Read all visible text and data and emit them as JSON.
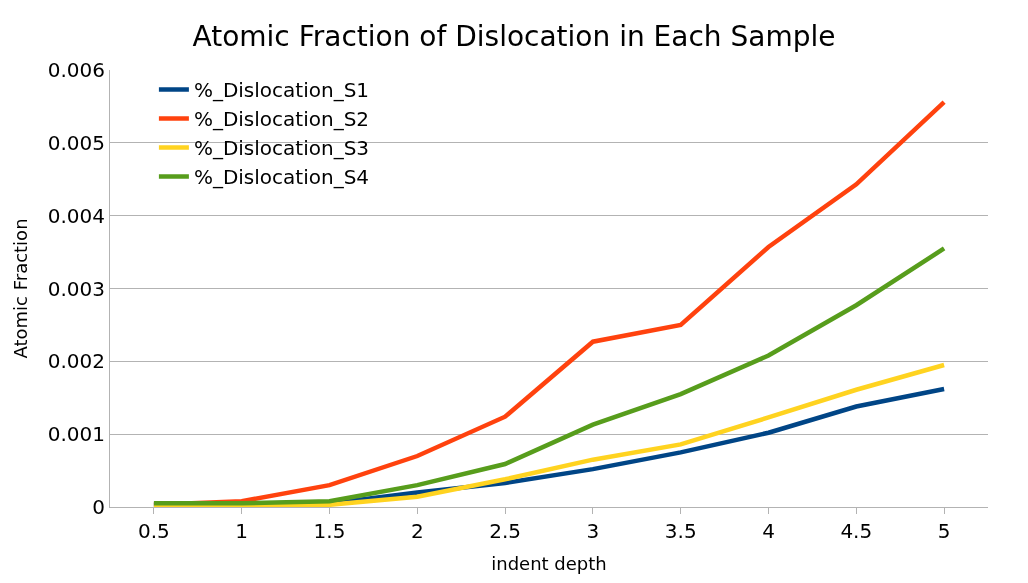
{
  "chart_data": {
    "type": "line",
    "title": "Atomic Fraction of Dislocation in Each Sample",
    "xlabel": "indent depth",
    "ylabel": "Atomic Fraction",
    "categories": [
      "0.5",
      "1",
      "1.5",
      "2",
      "2.5",
      "3",
      "3.5",
      "4",
      "4.5",
      "5"
    ],
    "series": [
      {
        "name": "%_Dislocation_S1",
        "color": "#004586",
        "values": [
          3e-05,
          3e-05,
          5e-05,
          0.0002,
          0.00033,
          0.00052,
          0.00075,
          0.00102,
          0.00138,
          0.00162
        ]
      },
      {
        "name": "%_Dislocation_S2",
        "color": "#ff420e",
        "values": [
          3e-05,
          8e-05,
          0.0003,
          0.0007,
          0.00124,
          0.00227,
          0.0025,
          0.00357,
          0.00443,
          0.00556
        ]
      },
      {
        "name": "%_Dislocation_S3",
        "color": "#ffd320",
        "values": [
          0.0,
          1e-05,
          3e-05,
          0.00014,
          0.00038,
          0.00065,
          0.00086,
          0.00123,
          0.00161,
          0.00195
        ]
      },
      {
        "name": "%_Dislocation_S4",
        "color": "#579d1c",
        "values": [
          5e-05,
          5e-05,
          8e-05,
          0.0003,
          0.00059,
          0.00113,
          0.00155,
          0.00208,
          0.00277,
          0.00355
        ]
      }
    ],
    "ylim": [
      0,
      0.006
    ],
    "yticks": [
      0,
      0.001,
      0.002,
      0.003,
      0.004,
      0.005,
      0.006
    ],
    "grid": "y",
    "legend": "top left",
    "marker": "none",
    "line_style": "solid"
  }
}
